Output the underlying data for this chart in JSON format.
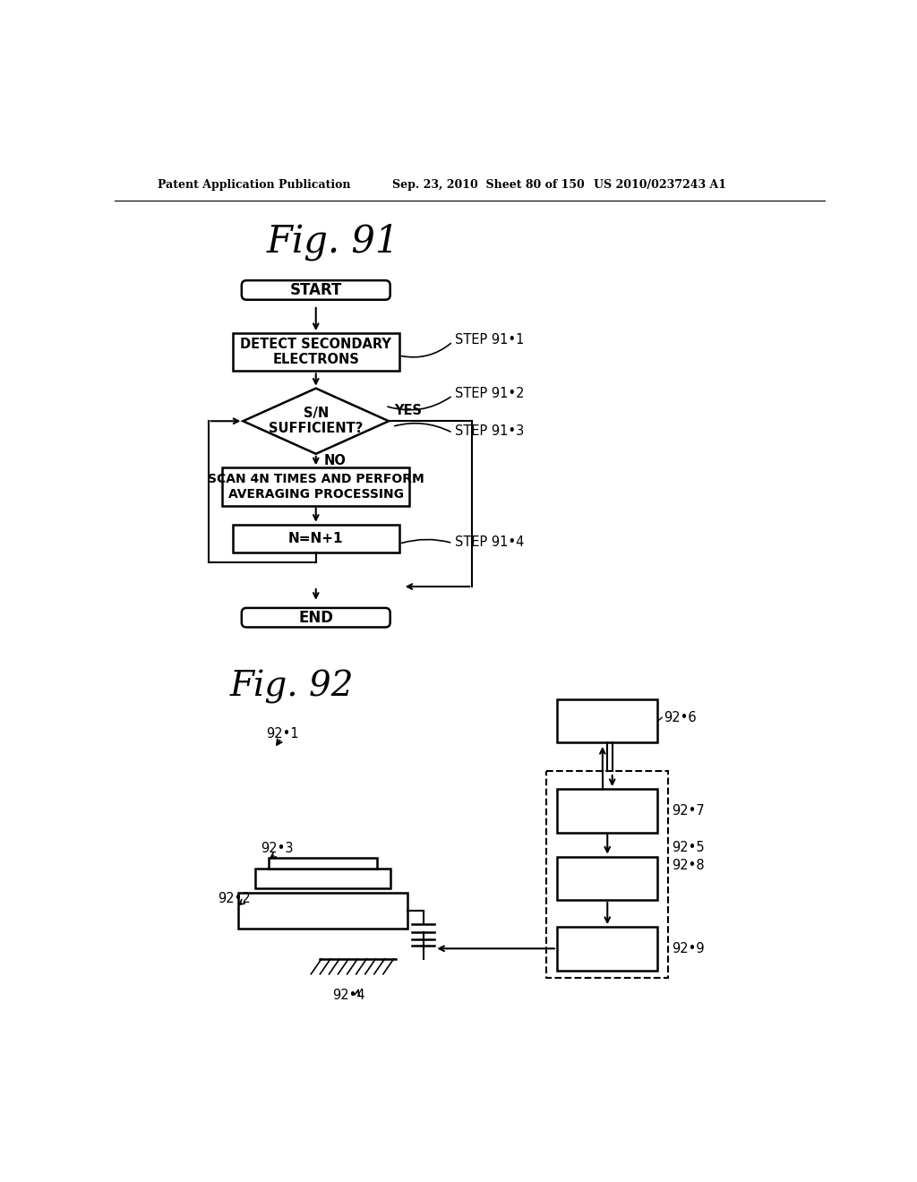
{
  "title": "Fig. 91",
  "title2": "Fig. 92",
  "header_left": "Patent Application Publication",
  "header_mid": "Sep. 23, 2010  Sheet 80 of 150",
  "header_right": "US 2010/0237243 A1",
  "bg_color": "#ffffff",
  "line_color": "#000000",
  "text_color": "#000000",
  "fig91": {
    "start_label": "START",
    "step1_label": "DETECT SECONDARY\nELECTRONS",
    "step1_tag": "STEP 91•1",
    "diamond_label": "S/N\nSUFFICIENT?",
    "step2_tag": "STEP 91•2",
    "yes_label": "YES",
    "step3_tag": "STEP 91•3",
    "no_label": "NO",
    "step3_label": "SCAN 4N TIMES AND PERFORM\nAVERAGING PROCESSING",
    "step4_label": "N=N+1",
    "step4_tag": "STEP 91•4",
    "end_label": "END"
  },
  "fig92": {
    "label_921": "92•1",
    "label_922": "92•2",
    "label_923": "92•3",
    "label_924": "92•4",
    "label_925": "92•5",
    "label_926": "92•6",
    "label_927": "92•7",
    "label_928": "92•8",
    "label_929": "92•9"
  }
}
